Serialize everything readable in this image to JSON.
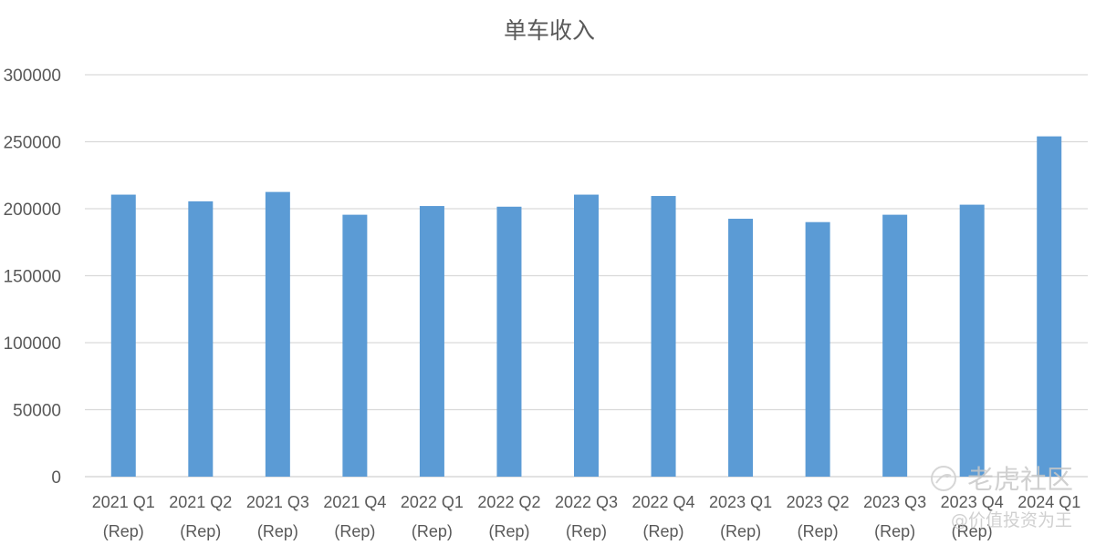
{
  "chart_data": {
    "type": "bar",
    "title": "单车收入",
    "xlabel": "",
    "ylabel": "",
    "ylim": [
      0,
      300000
    ],
    "yticks": [
      "0",
      "50000",
      "100000",
      "150000",
      "200000",
      "250000",
      "300000"
    ],
    "grid": true,
    "legend": "none",
    "categories": [
      [
        "2021 Q1",
        "(Rep)"
      ],
      [
        "2021 Q2",
        "(Rep)"
      ],
      [
        "2021 Q3",
        "(Rep)"
      ],
      [
        "2021 Q4",
        "(Rep)"
      ],
      [
        "2022 Q1",
        "(Rep)"
      ],
      [
        "2022 Q2",
        "(Rep)"
      ],
      [
        "2022 Q3",
        "(Rep)"
      ],
      [
        "2022 Q4",
        "(Rep)"
      ],
      [
        "2023 Q1",
        "(Rep)"
      ],
      [
        "2023 Q2",
        "(Rep)"
      ],
      [
        "2023 Q3",
        "(Rep)"
      ],
      [
        "2023 Q4",
        "(Rep)"
      ],
      [
        "2024 Q1",
        ""
      ]
    ],
    "values": [
      210500,
      205500,
      212500,
      195500,
      202000,
      201500,
      210500,
      209500,
      192500,
      190000,
      195500,
      203000,
      254000
    ],
    "bar_color": "#5b9bd5"
  },
  "watermark": {
    "brand": "老虎社区",
    "user": "@价值投资为王",
    "logo_icon": "tiger-logo-icon"
  }
}
